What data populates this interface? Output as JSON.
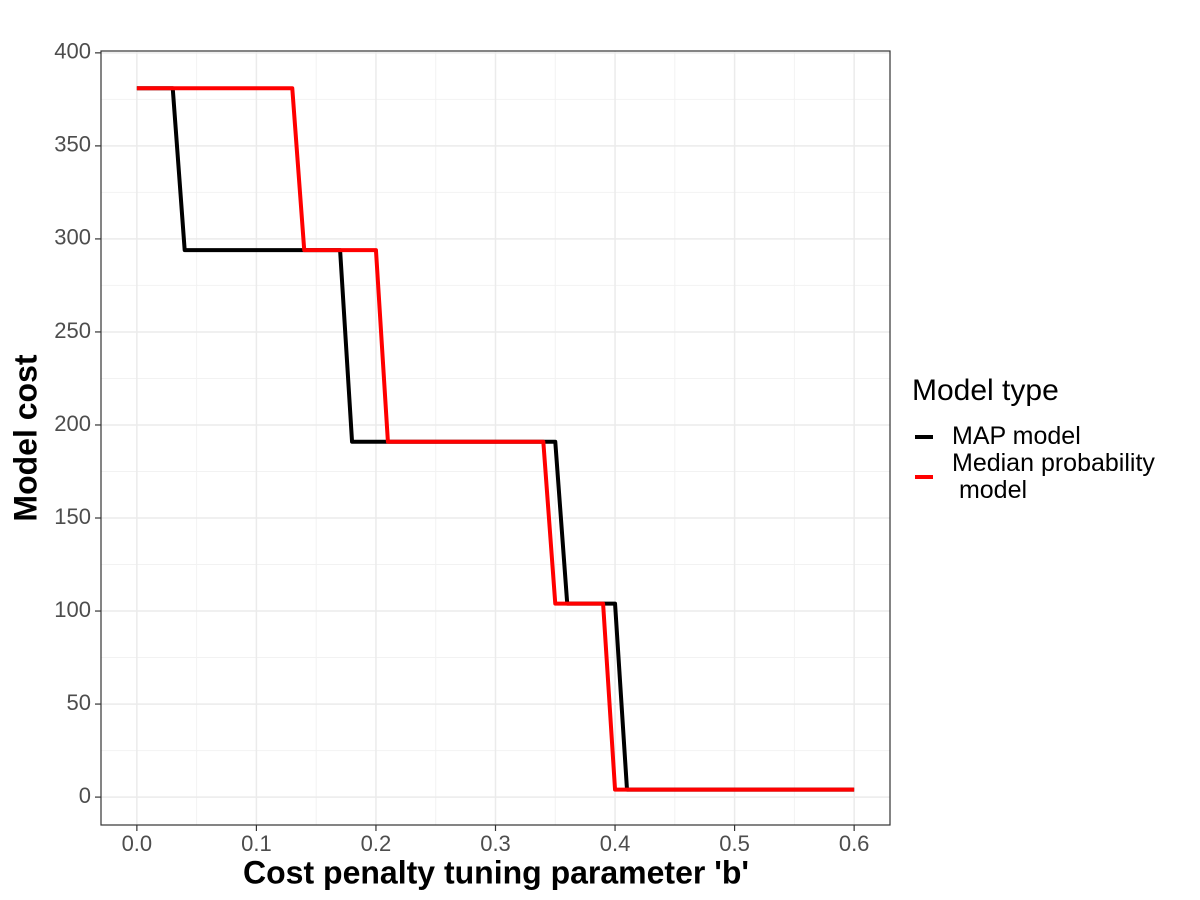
{
  "chart_data": {
    "type": "line",
    "x_label": "Cost penalty tuning parameter 'b'",
    "y_label": "Model cost",
    "legend_title": "Model type",
    "legend_position": "right",
    "grid": true,
    "minor_grid": true,
    "xlim": [
      -0.03,
      0.63
    ],
    "ylim": [
      -15,
      401
    ],
    "xticks": [
      {
        "value": 0,
        "label": "0.0"
      },
      0.1,
      0.2,
      0.3,
      0.4,
      0.5,
      0.6
    ],
    "yticks": [
      0,
      50,
      100,
      150,
      200,
      250,
      300,
      350,
      400
    ],
    "series": [
      {
        "name": "MAP model",
        "color": "#000000",
        "x": [
          0,
          0.03,
          0.04,
          0.17,
          0.18,
          0.35,
          0.36,
          0.4,
          0.41,
          0.6
        ],
        "values": [
          381,
          381,
          294,
          294,
          191,
          191,
          104,
          104,
          4,
          4
        ]
      },
      {
        "name": "Median probability\n model",
        "color": "#ff0000",
        "x": [
          0,
          0.13,
          0.14,
          0.2,
          0.21,
          0.34,
          0.35,
          0.39,
          0.4,
          0.6
        ],
        "values": [
          381,
          381,
          294,
          294,
          191,
          191,
          104,
          104,
          4,
          4
        ]
      }
    ]
  }
}
